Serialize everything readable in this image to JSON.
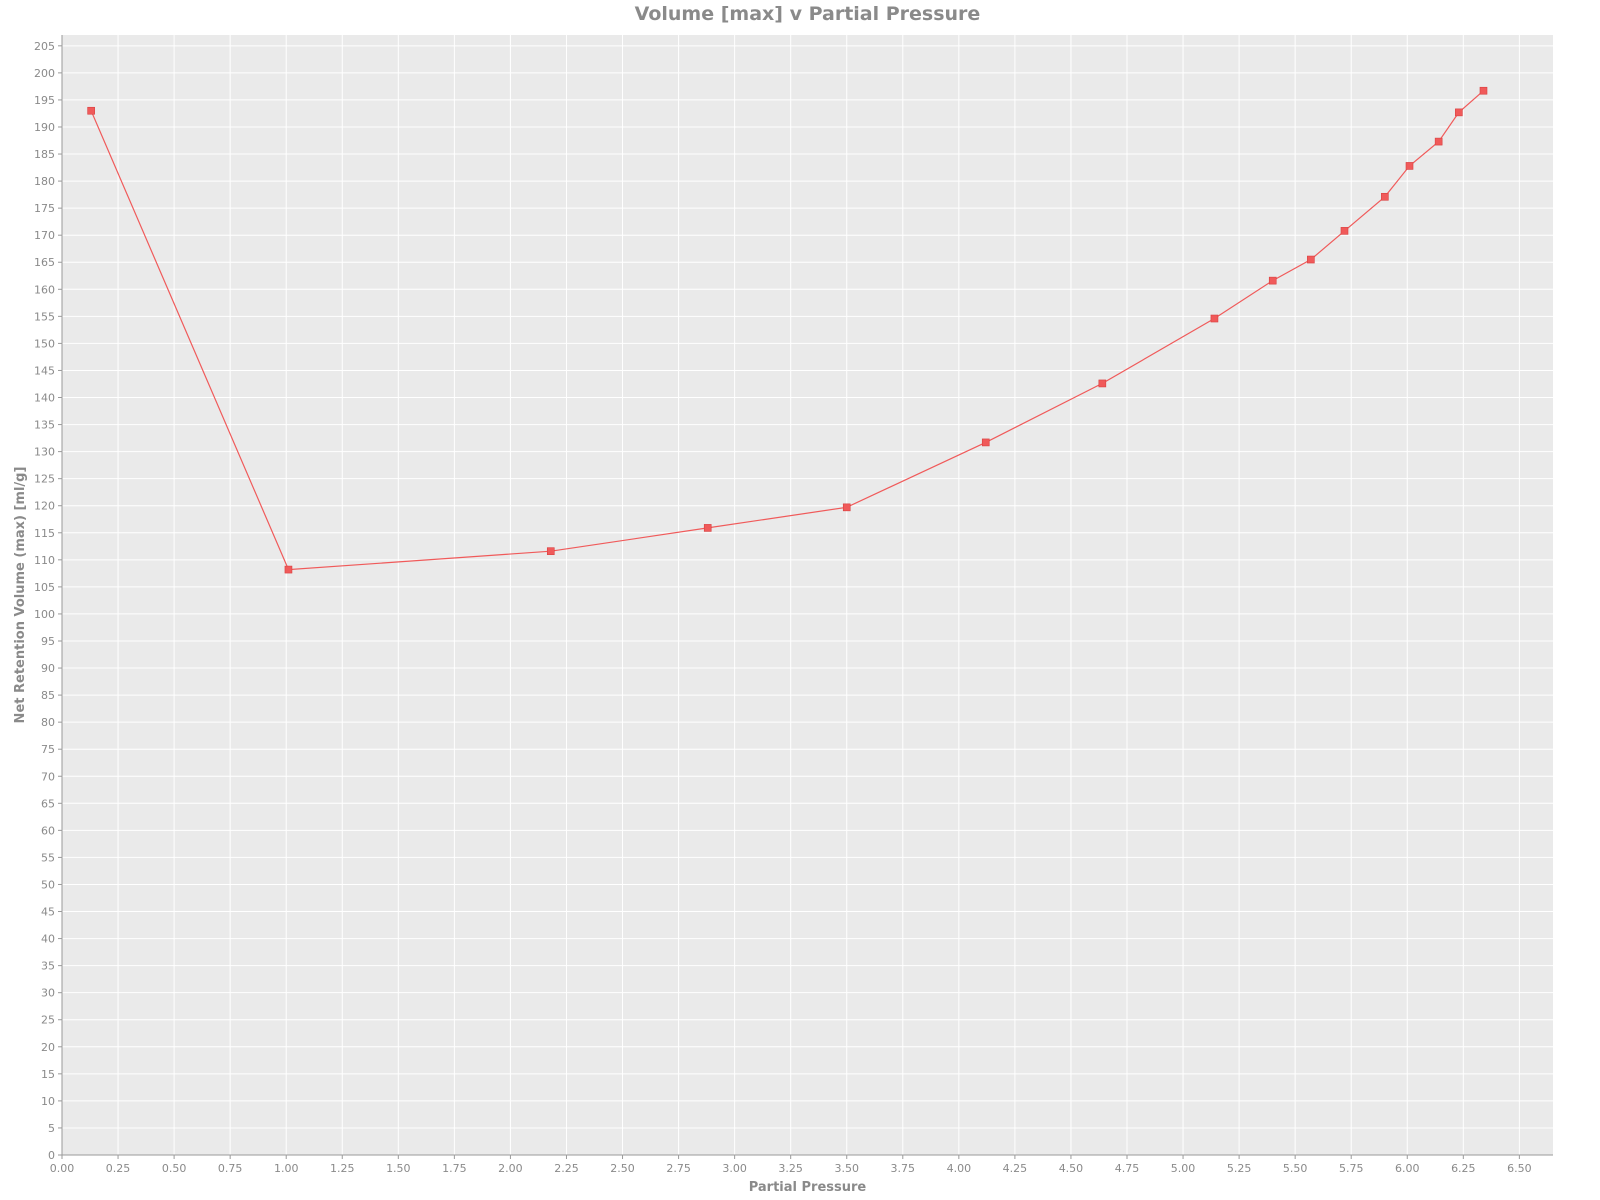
{
  "chart_data": {
    "type": "line",
    "title": "Volume [max] v Partial Pressure",
    "xlabel": "Partial Pressure",
    "ylabel": "Net Retention Volume (max) [ml/g]",
    "xlim": [
      0,
      6.65
    ],
    "ylim": [
      0,
      207
    ],
    "x_ticks": [
      "0.00",
      "0.25",
      "0.50",
      "0.75",
      "1.00",
      "1.25",
      "1.50",
      "1.75",
      "2.00",
      "2.25",
      "2.50",
      "2.75",
      "3.00",
      "3.25",
      "3.50",
      "3.75",
      "4.00",
      "4.25",
      "4.50",
      "4.75",
      "5.00",
      "5.25",
      "5.50",
      "5.75",
      "6.00",
      "6.25",
      "6.50"
    ],
    "y_ticks": [
      "0",
      "5",
      "10",
      "15",
      "20",
      "25",
      "30",
      "35",
      "40",
      "45",
      "50",
      "55",
      "60",
      "65",
      "70",
      "75",
      "80",
      "85",
      "90",
      "95",
      "100",
      "105",
      "110",
      "115",
      "120",
      "125",
      "130",
      "135",
      "140",
      "145",
      "150",
      "155",
      "160",
      "165",
      "170",
      "175",
      "180",
      "185",
      "190",
      "195",
      "200",
      "205"
    ],
    "grid": true,
    "series": [
      {
        "name": "Volume [max]",
        "color": "#f05a5a",
        "marker": "square",
        "x": [
          0.13,
          1.01,
          2.18,
          2.88,
          3.5,
          4.12,
          4.64,
          5.14,
          5.4,
          5.57,
          5.72,
          5.9,
          6.01,
          6.14,
          6.23,
          6.34
        ],
        "y": [
          193.0,
          108.2,
          111.6,
          115.9,
          119.7,
          131.7,
          142.6,
          154.6,
          161.6,
          165.5,
          170.8,
          177.1,
          182.8,
          187.3,
          192.7,
          196.7
        ]
      }
    ],
    "colors": {
      "background": "#eaeaea",
      "grid": "#ffffff",
      "text": "#8a8a8a"
    }
  }
}
